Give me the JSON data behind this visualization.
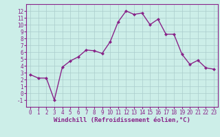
{
  "x": [
    0,
    1,
    2,
    3,
    4,
    5,
    6,
    7,
    8,
    9,
    10,
    11,
    12,
    13,
    14,
    15,
    16,
    17,
    18,
    19,
    20,
    21,
    22,
    23
  ],
  "y": [
    2.7,
    2.2,
    2.2,
    -1.0,
    3.8,
    4.7,
    5.3,
    6.3,
    6.2,
    5.8,
    7.5,
    10.4,
    12.0,
    11.5,
    11.7,
    10.0,
    10.8,
    8.6,
    8.6,
    5.7,
    4.2,
    4.8,
    3.7,
    3.5
  ],
  "line_color": "#882288",
  "marker": "D",
  "marker_size": 2.0,
  "line_width": 1.0,
  "xlabel": "Windchill (Refroidissement éolien,°C)",
  "xlabel_fontsize": 6.5,
  "xlabel_color": "#882288",
  "bg_color": "#cceee8",
  "grid_color": "#aacccc",
  "tick_color": "#882288",
  "xlim": [
    -0.5,
    23.5
  ],
  "ylim": [
    -2,
    13
  ],
  "yticks": [
    -1,
    0,
    1,
    2,
    3,
    4,
    5,
    6,
    7,
    8,
    9,
    10,
    11,
    12
  ],
  "xticks": [
    0,
    1,
    2,
    3,
    4,
    5,
    6,
    7,
    8,
    9,
    10,
    11,
    12,
    13,
    14,
    15,
    16,
    17,
    18,
    19,
    20,
    21,
    22,
    23
  ],
  "tick_fontsize": 5.5,
  "spine_color": "#882288"
}
